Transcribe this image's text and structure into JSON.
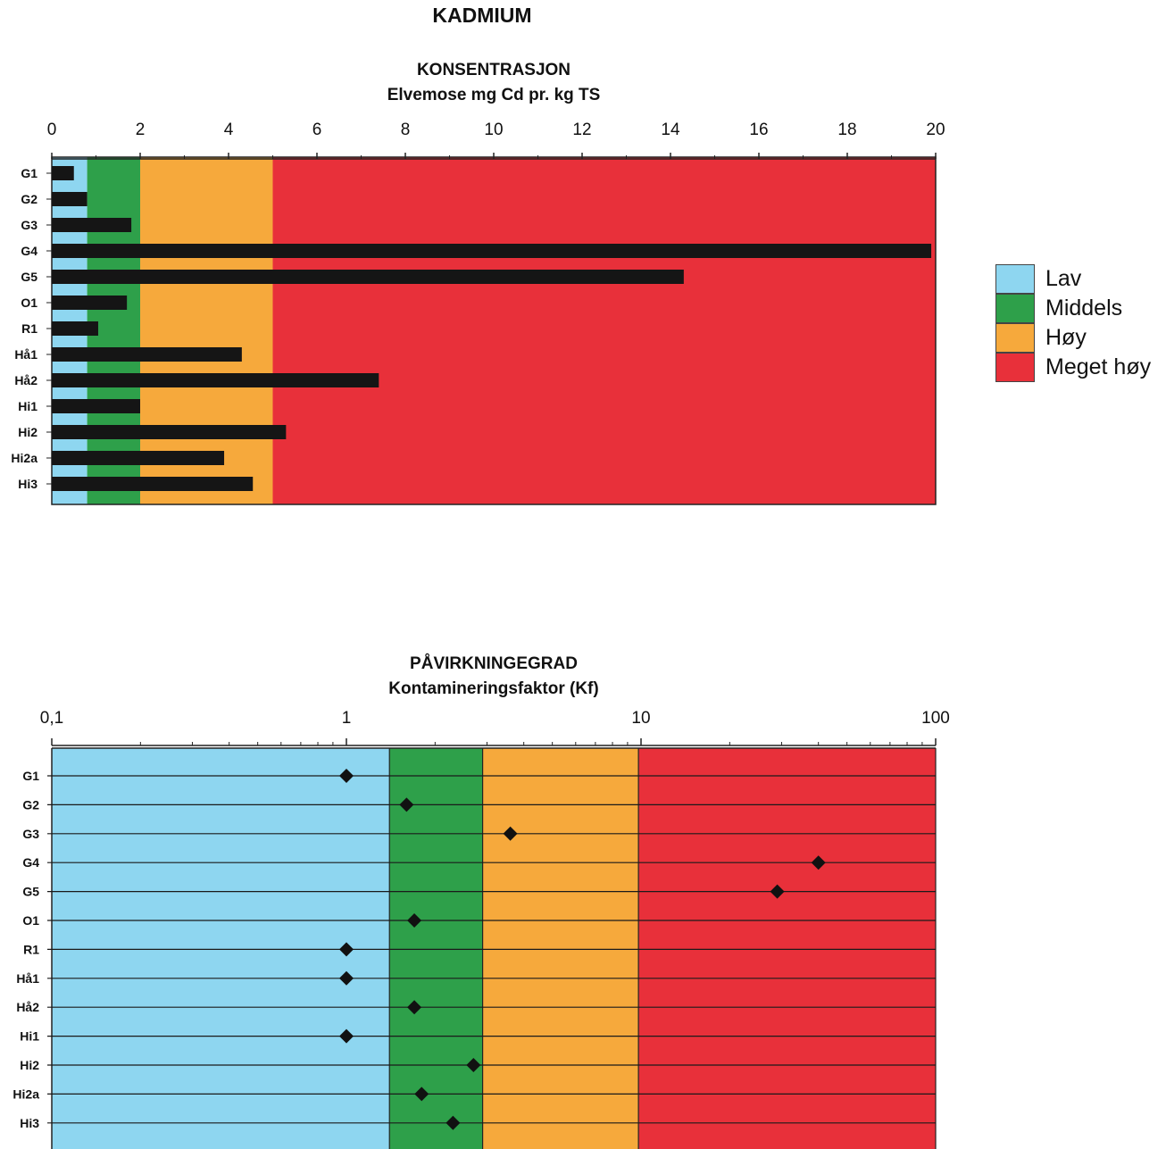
{
  "page_title": "KADMIUM",
  "colors": {
    "lav": "#8ed6f0",
    "middels": "#2ea04a",
    "hoy": "#f6a93c",
    "meget_hoy": "#e8303a",
    "bar": "#151515",
    "marker": "#111111"
  },
  "legend": [
    {
      "label": "Lav",
      "color_key": "lav"
    },
    {
      "label": "Middels",
      "color_key": "middels"
    },
    {
      "label": "Høy",
      "color_key": "hoy"
    },
    {
      "label": "Meget høy",
      "color_key": "meget_hoy"
    }
  ],
  "chart_data": [
    {
      "type": "bar",
      "orientation": "horizontal",
      "title": "KONSENTRASJON",
      "subtitle": "Elvemose mg Cd pr. kg TS",
      "axis_position": "top",
      "xlim": [
        0,
        20
      ],
      "xticks": [
        0,
        2,
        4,
        6,
        8,
        10,
        12,
        14,
        16,
        18,
        20
      ],
      "categories": [
        "G1",
        "G2",
        "G3",
        "G4",
        "G5",
        "O1",
        "R1",
        "Hå1",
        "Hå2",
        "Hi1",
        "Hi2",
        "Hi2a",
        "Hi3"
      ],
      "values": [
        0.5,
        0.8,
        1.8,
        19.9,
        14.3,
        1.7,
        1.05,
        4.3,
        7.4,
        2.0,
        5.3,
        3.9,
        4.55
      ],
      "class_bands": [
        {
          "class": "lav",
          "from": 0,
          "to": 0.8
        },
        {
          "class": "middels",
          "from": 0.8,
          "to": 2
        },
        {
          "class": "hoy",
          "from": 2,
          "to": 5
        },
        {
          "class": "meget_hoy",
          "from": 5,
          "to": 20
        }
      ],
      "grid": false
    },
    {
      "type": "scatter",
      "title": "PÅVIRKNINGEGRAD",
      "subtitle": "Kontamineringsfaktor (Kf)",
      "axis_position": "top",
      "xscale": "log",
      "xlim": [
        0.1,
        100
      ],
      "xticks": [
        0.1,
        1,
        10,
        100
      ],
      "xtick_labels": [
        "0,1",
        "1",
        "10",
        "100"
      ],
      "categories": [
        "G1",
        "G2",
        "G3",
        "G4",
        "G5",
        "O1",
        "R1",
        "Hå1",
        "Hå2",
        "Hi1",
        "Hi2",
        "Hi2a",
        "Hi3"
      ],
      "values": [
        1.0,
        1.6,
        3.6,
        40,
        29,
        1.7,
        1.0,
        1.0,
        1.7,
        1.0,
        2.7,
        1.8,
        2.3
      ],
      "class_bands": [
        {
          "class": "lav",
          "from": 0.1,
          "to": 1.4
        },
        {
          "class": "middels",
          "from": 1.4,
          "to": 2.9
        },
        {
          "class": "hoy",
          "from": 2.9,
          "to": 9.8
        },
        {
          "class": "meget_hoy",
          "from": 9.8,
          "to": 100
        }
      ],
      "grid": true
    }
  ]
}
